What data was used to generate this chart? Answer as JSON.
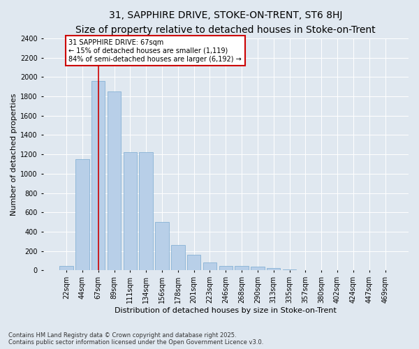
{
  "title1": "31, SAPPHIRE DRIVE, STOKE-ON-TRENT, ST6 8HJ",
  "title2": "Size of property relative to detached houses in Stoke-on-Trent",
  "xlabel": "Distribution of detached houses by size in Stoke-on-Trent",
  "ylabel": "Number of detached properties",
  "categories": [
    "22sqm",
    "44sqm",
    "67sqm",
    "89sqm",
    "111sqm",
    "134sqm",
    "156sqm",
    "178sqm",
    "201sqm",
    "223sqm",
    "246sqm",
    "268sqm",
    "290sqm",
    "313sqm",
    "335sqm",
    "357sqm",
    "380sqm",
    "402sqm",
    "424sqm",
    "447sqm",
    "469sqm"
  ],
  "values": [
    50,
    1150,
    1960,
    1850,
    1220,
    1220,
    500,
    260,
    160,
    80,
    50,
    50,
    42,
    25,
    12,
    6,
    5,
    4,
    3,
    2,
    2
  ],
  "bar_color": "#b8cfe8",
  "bar_edge_color": "#7aaad0",
  "redline_index": 2,
  "annotation_line1": "31 SAPPHIRE DRIVE: 67sqm",
  "annotation_line2": "← 15% of detached houses are smaller (1,119)",
  "annotation_line3": "84% of semi-detached houses are larger (6,192) →",
  "annotation_box_facecolor": "#ffffff",
  "annotation_box_edgecolor": "#cc0000",
  "redline_color": "#cc0000",
  "ylim": [
    0,
    2400
  ],
  "yticks": [
    0,
    200,
    400,
    600,
    800,
    1000,
    1200,
    1400,
    1600,
    1800,
    2000,
    2200,
    2400
  ],
  "bg_color": "#e0e8f0",
  "grid_color": "#ffffff",
  "footer1": "Contains HM Land Registry data © Crown copyright and database right 2025.",
  "footer2": "Contains public sector information licensed under the Open Government Licence v3.0.",
  "title1_fontsize": 10,
  "title2_fontsize": 8.5,
  "xlabel_fontsize": 8,
  "ylabel_fontsize": 8,
  "tick_fontsize": 7,
  "annotation_fontsize": 7,
  "footer_fontsize": 6
}
